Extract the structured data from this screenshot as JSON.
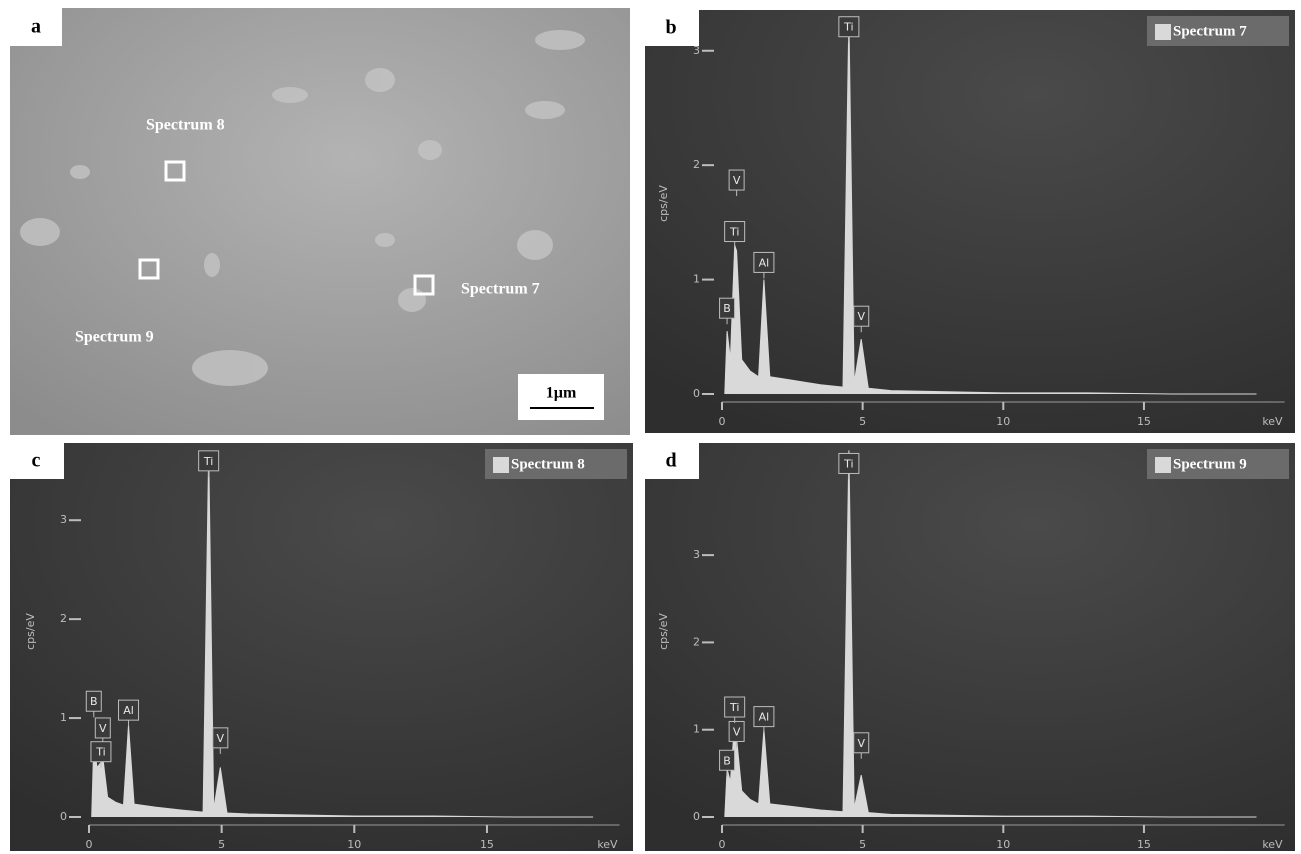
{
  "sem": {
    "panel_label": "a",
    "spots": [
      "Spectrum 8",
      "Spectrum 9",
      "Spectrum 7"
    ],
    "scale_bar": "1µm"
  },
  "chart_data": [
    {
      "type": "area",
      "panel_label": "b",
      "y_label": "cps/eV",
      "x_label": "keV",
      "x": [
        0.1,
        0.18,
        0.3,
        0.45,
        0.52,
        0.7,
        1.0,
        1.3,
        1.49,
        1.7,
        2.5,
        3.5,
        4.3,
        4.51,
        4.7,
        4.95,
        5.2,
        6,
        8,
        10,
        13,
        16,
        19
      ],
      "series": [
        {
          "name": "Spectrum 7",
          "color": "#d9d9d9",
          "values": [
            0,
            0.55,
            0.3,
            1.3,
            1.25,
            0.3,
            0.2,
            0.15,
            1.0,
            0.15,
            0.12,
            0.08,
            0.06,
            3.3,
            0.1,
            0.48,
            0.05,
            0.03,
            0.02,
            0.01,
            0.01,
            0,
            0
          ]
        }
      ],
      "xlim": [
        0,
        20
      ],
      "xticks": [
        0,
        5,
        10,
        15
      ],
      "ylim": [
        0,
        3.33
      ],
      "yticks": [
        0,
        1,
        2,
        3
      ],
      "annotations": [
        {
          "text": "B",
          "x": 0.18,
          "y": 0.75
        },
        {
          "text": "Ti",
          "x": 0.45,
          "y": 1.42
        },
        {
          "text": "V",
          "x": 0.52,
          "y": 1.87
        },
        {
          "text": "Al",
          "x": 1.49,
          "y": 1.15
        },
        {
          "text": "Ti",
          "x": 4.51,
          "y": 3.21
        },
        {
          "text": "V",
          "x": 4.95,
          "y": 0.68
        }
      ]
    },
    {
      "type": "area",
      "panel_label": "c",
      "y_label": "cps/eV",
      "x_label": "keV",
      "x": [
        0.1,
        0.18,
        0.3,
        0.45,
        0.52,
        0.7,
        1.0,
        1.3,
        1.49,
        1.7,
        2.5,
        3.5,
        4.3,
        4.51,
        4.7,
        4.95,
        5.2,
        6,
        8,
        10,
        13,
        16,
        19
      ],
      "series": [
        {
          "name": "Spectrum 8",
          "color": "#d9d9d9",
          "values": [
            0,
            0.75,
            0.5,
            0.55,
            0.6,
            0.2,
            0.15,
            0.12,
            0.93,
            0.13,
            0.1,
            0.07,
            0.05,
            3.7,
            0.08,
            0.5,
            0.04,
            0.03,
            0.02,
            0.01,
            0.01,
            0,
            0
          ]
        }
      ],
      "xlim": [
        0,
        20
      ],
      "xticks": [
        0,
        5,
        10,
        15
      ],
      "ylim": [
        0,
        3.75
      ],
      "yticks": [
        0,
        1,
        2,
        3
      ],
      "annotations": [
        {
          "text": "B",
          "x": 0.18,
          "y": 1.17
        },
        {
          "text": "V",
          "x": 0.52,
          "y": 0.9
        },
        {
          "text": "Ti",
          "x": 0.45,
          "y": 0.66
        },
        {
          "text": "Al",
          "x": 1.49,
          "y": 1.08
        },
        {
          "text": "Ti",
          "x": 4.51,
          "y": 3.6
        },
        {
          "text": "V",
          "x": 4.95,
          "y": 0.8
        }
      ]
    },
    {
      "type": "area",
      "panel_label": "d",
      "y_label": "cps/eV",
      "x_label": "keV",
      "x": [
        0.1,
        0.18,
        0.3,
        0.45,
        0.52,
        0.7,
        1.0,
        1.3,
        1.49,
        1.7,
        2.5,
        3.5,
        4.3,
        4.51,
        4.7,
        4.95,
        5.2,
        6,
        8,
        10,
        13,
        16,
        19
      ],
      "series": [
        {
          "name": "Spectrum 9",
          "color": "#d9d9d9",
          "values": [
            0,
            0.55,
            0.4,
            1.1,
            0.9,
            0.3,
            0.2,
            0.15,
            1.0,
            0.15,
            0.12,
            0.08,
            0.06,
            4.2,
            0.1,
            0.48,
            0.05,
            0.03,
            0.02,
            0.01,
            0.01,
            0,
            0
          ]
        }
      ],
      "xlim": [
        0,
        20
      ],
      "xticks": [
        0,
        5,
        10,
        15
      ],
      "ylim": [
        0,
        4.25
      ],
      "yticks": [
        0,
        1,
        2,
        3
      ],
      "annotations": [
        {
          "text": "B",
          "x": 0.18,
          "y": 0.65
        },
        {
          "text": "V",
          "x": 0.52,
          "y": 0.98
        },
        {
          "text": "Ti",
          "x": 0.45,
          "y": 1.26
        },
        {
          "text": "Al",
          "x": 1.49,
          "y": 1.15
        },
        {
          "text": "Ti",
          "x": 4.51,
          "y": 4.05
        },
        {
          "text": "V",
          "x": 4.95,
          "y": 0.85
        }
      ]
    }
  ]
}
